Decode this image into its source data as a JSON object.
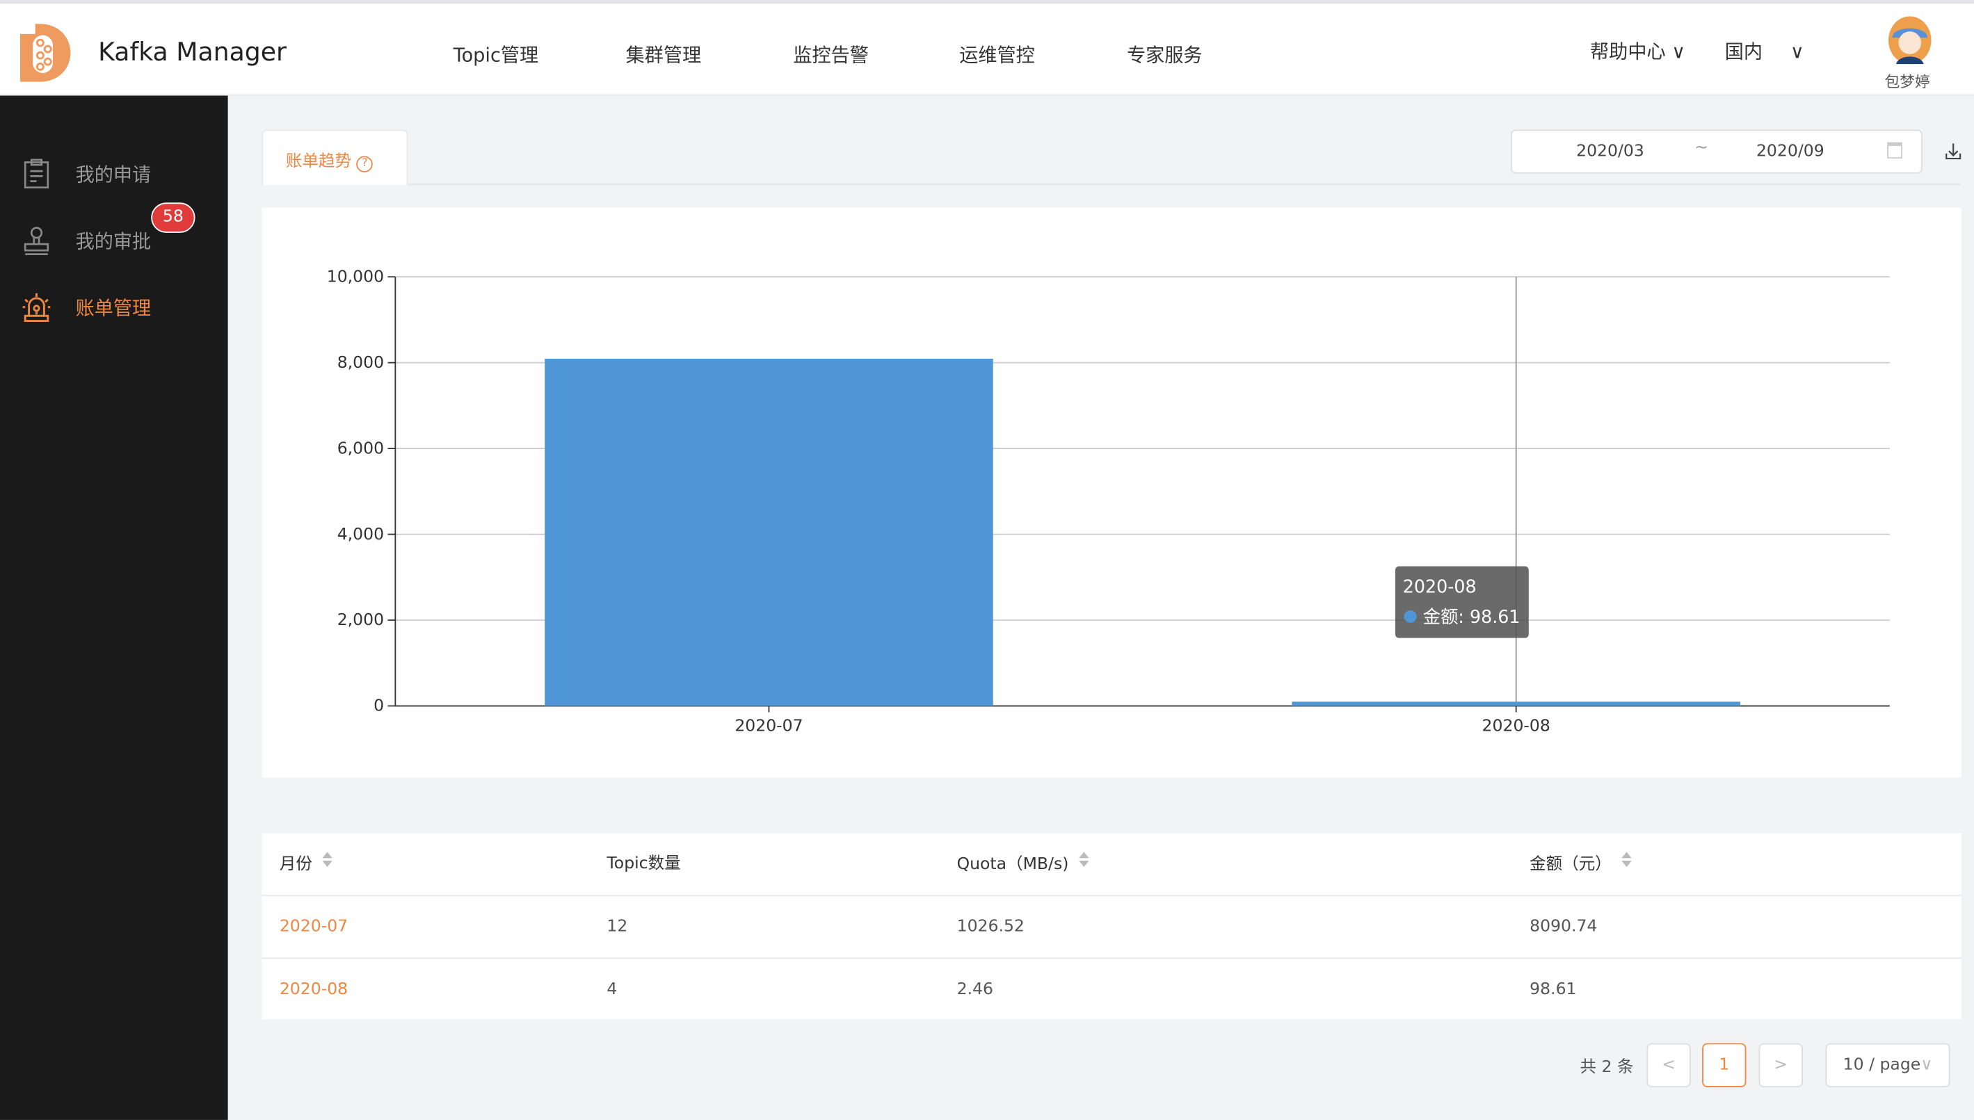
{
  "header": {
    "app_title": "Kafka Manager",
    "nav": [
      "Topic管理",
      "集群管理",
      "监控告警",
      "运维管控",
      "专家服务"
    ],
    "help": "帮助中心",
    "region": "国内",
    "user": "包梦婷"
  },
  "sidebar": {
    "items": [
      {
        "label": "我的申请",
        "icon": "clipboard-icon"
      },
      {
        "label": "我的审批",
        "icon": "stamp-icon",
        "badge": "58"
      },
      {
        "label": "账单管理",
        "icon": "alarm-icon",
        "active": true
      }
    ]
  },
  "tab": {
    "label": "账单趋势"
  },
  "daterange": {
    "start": "2020/03",
    "sep": "~",
    "end": "2020/09"
  },
  "accent": "#ef8743",
  "chart_data": {
    "type": "bar",
    "categories": [
      "2020-07",
      "2020-08"
    ],
    "series": [
      {
        "name": "金额",
        "values": [
          8090.74,
          98.61
        ],
        "color": "#4e96d6"
      }
    ],
    "ylim": [
      0,
      10000
    ],
    "yticks": [
      "0",
      "2,000",
      "4,000",
      "6,000",
      "8,000",
      "10,000"
    ],
    "grid": true,
    "tooltip": {
      "title": "2020-08",
      "label": "金额: 98.61"
    }
  },
  "table": {
    "headers": [
      "月份",
      "Topic数量",
      "Quota（MB/s)",
      "金额（元）"
    ],
    "rows": [
      [
        "2020-07",
        "12",
        "1026.52",
        "8090.74"
      ],
      [
        "2020-08",
        "4",
        "2.46",
        "98.61"
      ]
    ]
  },
  "pagination": {
    "total": "共 2 条",
    "current": "1",
    "prev": "<",
    "next": ">",
    "page_size": "10 / page"
  }
}
